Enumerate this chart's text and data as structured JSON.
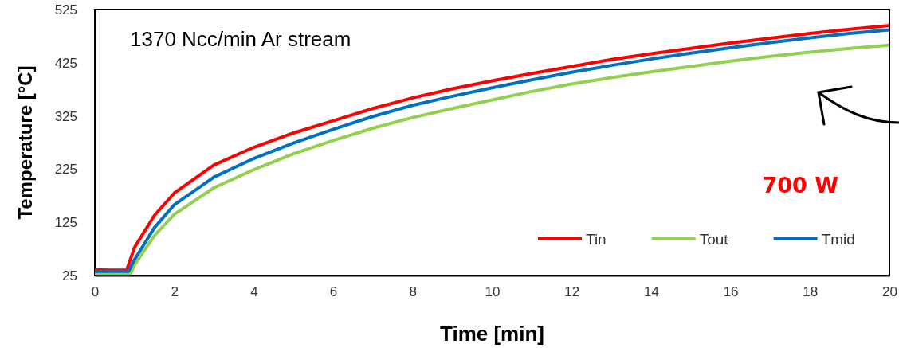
{
  "chart_data": {
    "type": "line",
    "xlabel": "Time [min]",
    "ylabel": "Temperature [°C]",
    "xlim": [
      0,
      20
    ],
    "xticks": [
      0,
      2,
      4,
      6,
      8,
      10,
      12,
      14,
      16,
      18,
      20
    ],
    "ylim": [
      25,
      525
    ],
    "yticks": [
      25,
      125,
      225,
      325,
      425,
      525
    ],
    "grid": false,
    "legend": "bottom right",
    "marker": "none",
    "line_style": "solid",
    "annotations": [
      "1370 Ncc/min Ar stream",
      "700 W"
    ],
    "series": [
      {
        "name": "Tin",
        "color": "#ff0000",
        "x": [
          0,
          0.4,
          0.8,
          1,
          1.5,
          2,
          3,
          4,
          5,
          6,
          7,
          8,
          9,
          10,
          11,
          12,
          13,
          14,
          15,
          16,
          17,
          18,
          19,
          20
        ],
        "values": [
          36,
          35,
          35,
          78,
          138,
          180,
          233,
          266,
          293,
          316,
          339,
          359,
          376,
          391,
          405,
          418,
          431,
          442,
          452,
          462,
          471,
          480,
          488,
          495
        ]
      },
      {
        "name": "Tout",
        "color": "#92d050",
        "x": [
          0,
          0.4,
          0.9,
          1,
          1.5,
          2,
          3,
          4,
          5,
          6,
          7,
          8,
          9,
          10,
          11,
          12,
          13,
          14,
          15,
          16,
          17,
          18,
          19,
          20
        ],
        "values": [
          29,
          29,
          29,
          45,
          100,
          140,
          190,
          224,
          254,
          279,
          302,
          322,
          339,
          355,
          371,
          385,
          397,
          408,
          418,
          428,
          437,
          445,
          452,
          458
        ]
      },
      {
        "name": "Tmid",
        "color": "#0070c0",
        "x": [
          0,
          0.4,
          0.85,
          1,
          1.5,
          2,
          3,
          4,
          5,
          6,
          7,
          8,
          9,
          10,
          11,
          12,
          13,
          14,
          15,
          16,
          17,
          18,
          19,
          20
        ],
        "values": [
          33,
          33,
          33,
          55,
          115,
          158,
          210,
          245,
          274,
          300,
          324,
          345,
          362,
          378,
          393,
          407,
          420,
          432,
          443,
          453,
          463,
          472,
          480,
          487
        ]
      }
    ]
  }
}
